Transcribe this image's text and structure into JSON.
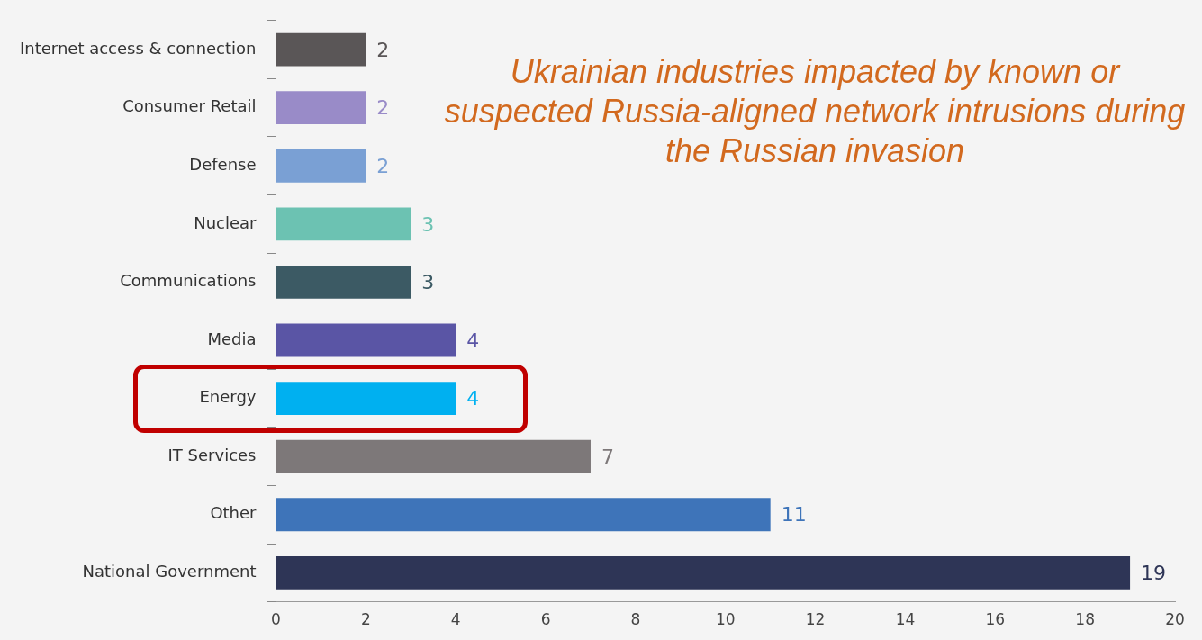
{
  "chart_data": {
    "type": "bar",
    "orientation": "horizontal",
    "title": "Ukrainian industries impacted by known or suspected Russia-aligned network intrusions during the Russian invasion",
    "categories": [
      "Internet access & connection",
      "Consumer Retail",
      "Defense",
      "Nuclear",
      "Communications",
      "Media",
      "Energy",
      "IT Services",
      "Other",
      "National Government"
    ],
    "values": [
      2,
      2,
      2,
      3,
      3,
      4,
      4,
      7,
      11,
      19
    ],
    "colors": [
      "#5a5657",
      "#998bc8",
      "#7aa0d4",
      "#6cc2b2",
      "#3c5a64",
      "#5a55a5",
      "#00b0f0",
      "#7d7879",
      "#3e74b9",
      "#2e3556"
    ],
    "xlim": [
      0,
      20
    ],
    "xticks": [
      0,
      2,
      4,
      6,
      8,
      10,
      12,
      14,
      16,
      18,
      20
    ],
    "data_labels": true,
    "grid": false,
    "legend": false
  }
}
